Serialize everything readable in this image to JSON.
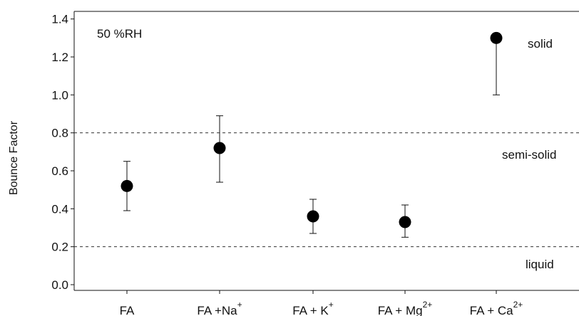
{
  "chart_data": {
    "type": "scatter",
    "ylabel": "Bounce Factor",
    "ylim": [
      -0.03,
      1.44
    ],
    "yticks": [
      "0.0",
      "0.2",
      "0.4",
      "0.6",
      "0.8",
      "1.0",
      "1.2",
      "1.4"
    ],
    "categories": [
      {
        "base": "FA",
        "sup": ""
      },
      {
        "base": "FA +Na",
        "sup": "+"
      },
      {
        "base": "FA + K",
        "sup": "+"
      },
      {
        "base": "FA + Mg",
        "sup": "2+"
      },
      {
        "base": "FA + Ca",
        "sup": "2+"
      }
    ],
    "series": [
      {
        "points": [
          {
            "y": 0.52,
            "err_low": 0.39,
            "err_high": 0.65
          },
          {
            "y": 0.72,
            "err_low": 0.54,
            "err_high": 0.89
          },
          {
            "y": 0.36,
            "err_low": 0.27,
            "err_high": 0.45
          },
          {
            "y": 0.33,
            "err_low": 0.25,
            "err_high": 0.42
          },
          {
            "y": 1.3,
            "err_low": 1.0,
            "err_high": 1.3
          }
        ]
      }
    ],
    "reference_lines": [
      0.2,
      0.8
    ],
    "annotations": {
      "condition": "50 %RH",
      "solid": "solid",
      "semi_solid": "semi-solid",
      "liquid": "liquid"
    },
    "grid": false
  }
}
